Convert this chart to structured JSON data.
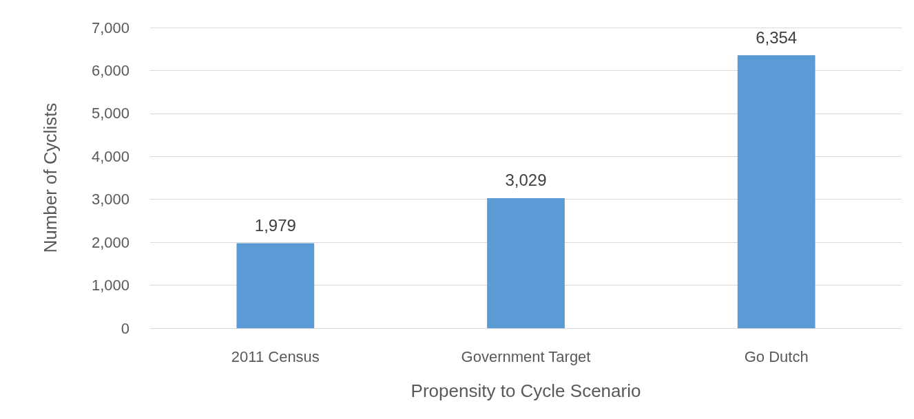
{
  "chart_data": {
    "type": "bar",
    "categories": [
      "2011 Census",
      "Government Target",
      "Go Dutch"
    ],
    "values": [
      1979,
      3029,
      6354
    ],
    "color": "#5b9bd5",
    "xlabel": "Propensity to Cycle Scenario",
    "ylabel": "Number of Cyclists",
    "ylim": [
      0,
      7000
    ],
    "yticks": [
      0,
      {
        "value": 1000,
        "label": "1,000"
      },
      {
        "value": 2000,
        "label": "2,000"
      },
      {
        "value": 3000,
        "label": "3,000"
      },
      {
        "value": 4000,
        "label": "4,000"
      },
      {
        "value": 5000,
        "label": "5,000"
      },
      {
        "value": 6000,
        "label": "6,000"
      },
      {
        "value": 7000,
        "label": "7,000"
      }
    ],
    "grid": "y",
    "value_labels": [
      "1,979",
      "3,029",
      "6,354"
    ]
  }
}
